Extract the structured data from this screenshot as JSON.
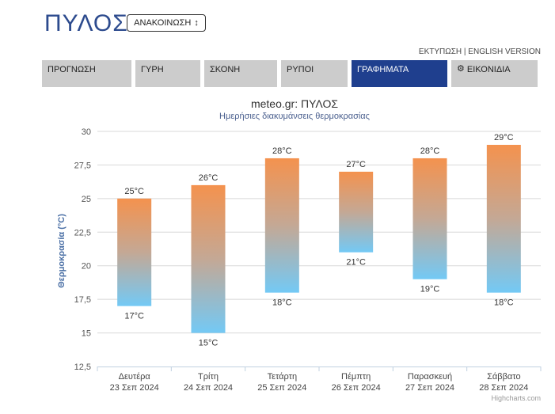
{
  "header": {
    "title": "ΠΥΛΟΣ",
    "announce_label": "ΑΝΑΚΟΙΝΩΣΗ",
    "print_link": "ΕΚΤΥΠΩΣΗ",
    "separator": "|",
    "english_link": "ENGLISH VERSION"
  },
  "nav": {
    "items": [
      {
        "label": "ΠΡΟΓΝΩΣΗ"
      },
      {
        "label": "ΓΥΡΗ"
      },
      {
        "label": "ΣΚΟΝΗ"
      },
      {
        "label": "ΡΥΠΟΙ"
      },
      {
        "label": "ΓΡΑΦΗΜΑΤΑ"
      },
      {
        "label": "ΕΙΚΟΝΙΔΙΑ"
      }
    ],
    "active": "ΓΡΑΦΗΜΑΤΑ"
  },
  "colors": {
    "brand": "#2d4b8e",
    "nav_active": "#1f3f8e",
    "nav_inactive": "#cccccc",
    "bar_top": "#f4924e",
    "bar_bottom": "#73c9f5"
  },
  "icons": {
    "announce_arrow": "sort-arrow-icon",
    "settings": "gear-icon"
  },
  "chart_data": {
    "type": "bar",
    "subtype": "range",
    "title": "meteo.gr: ΠΥΛΟΣ",
    "subtitle": "Ημερήσιες διακυμάνσεις θερμοκρασίας",
    "ylabel": "Θερμοκρασία (°C)",
    "xlabel": "",
    "ylim": [
      12.5,
      30
    ],
    "yticks": [
      "12,5",
      "15",
      "17,5",
      "20",
      "22,5",
      "25",
      "27,5",
      "30"
    ],
    "grid": true,
    "categories": [
      {
        "day": "Δευτέρα",
        "date": "23 Σεπ 2024"
      },
      {
        "day": "Τρίτη",
        "date": "24 Σεπ 2024"
      },
      {
        "day": "Τετάρτη",
        "date": "25 Σεπ 2024"
      },
      {
        "day": "Πέμπτη",
        "date": "26 Σεπ 2024"
      },
      {
        "day": "Παρασκευή",
        "date": "27 Σεπ 2024"
      },
      {
        "day": "Σάββατο",
        "date": "28 Σεπ 2024"
      }
    ],
    "min": [
      17,
      15,
      18,
      21,
      19,
      18
    ],
    "max": [
      25,
      26,
      28,
      27,
      28,
      29
    ],
    "unit": "°C",
    "credit": "Highcharts.com"
  }
}
